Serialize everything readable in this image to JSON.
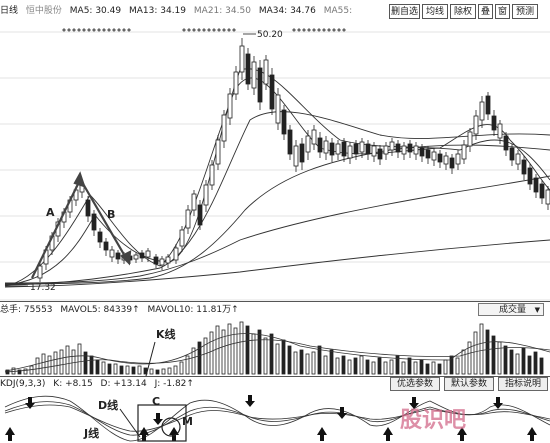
{
  "header": {
    "period": "日线",
    "stock_name": "恒中股份",
    "ma5": "MA5: 30.49",
    "ma13": "MA13: 34.19",
    "ma21": "MA21: 34.50",
    "ma34": "MA34: 34.76",
    "ma55": "MA55: "
  },
  "toolbar": {
    "del_watch": "删自选",
    "ma_line": "均线",
    "ex_right": "除权",
    "overlay": "叠",
    "window": "窗",
    "warning": "预测"
  },
  "price_chart": {
    "high_label": "50.20",
    "low_label": "17.32",
    "annotation_a": "A",
    "annotation_b": "B"
  },
  "volume": {
    "total_hands": "总手: 75553",
    "mavol5": "MAVOL5: 84339↑",
    "mavol10": "MAVOL10: 11.81万↑",
    "selector": "成交量",
    "annotation_k": "K线"
  },
  "kdj": {
    "title": "KDJ(9,3,3)",
    "k": "K: +8.15",
    "d": "D: +13.14",
    "j": "J: -1.82↑",
    "btn_optimize": "优选参数",
    "btn_default": "默认参数",
    "btn_help": "指标说明",
    "annotation_d": "D线",
    "annotation_j": "J线",
    "annotation_c": "C",
    "annotation_m": "M"
  },
  "watermark": "股识吧",
  "colors": {
    "up": "#ffffff",
    "down": "#222222",
    "ma": "#444444",
    "watermark": "#d26a8a"
  }
}
